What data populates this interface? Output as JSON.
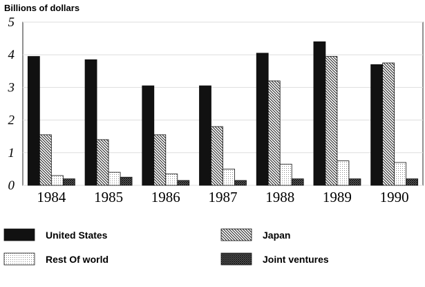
{
  "chart_data": {
    "type": "bar",
    "title": "Billions of dollars",
    "categories": [
      "1984",
      "1985",
      "1986",
      "1987",
      "1988",
      "1989",
      "1990"
    ],
    "series": [
      {
        "name": "United States",
        "color": "#111111",
        "pattern": "solid",
        "values": [
          3.95,
          3.85,
          3.05,
          3.05,
          4.05,
          4.4,
          3.7
        ]
      },
      {
        "name": "Japan",
        "color": "#444444",
        "pattern": "hatch",
        "values": [
          1.55,
          1.4,
          1.55,
          1.8,
          3.2,
          3.95,
          3.75
        ]
      },
      {
        "name": "Rest Of world",
        "color": "#999999",
        "pattern": "dots",
        "values": [
          0.3,
          0.4,
          0.35,
          0.5,
          0.65,
          0.75,
          0.7
        ]
      },
      {
        "name": "Joint ventures",
        "color": "#333333",
        "pattern": "crosshatch",
        "values": [
          0.2,
          0.25,
          0.15,
          0.15,
          0.2,
          0.2,
          0.2
        ]
      }
    ],
    "ylim": [
      0,
      5
    ],
    "yticks": [
      0,
      1,
      2,
      3,
      4,
      5
    ],
    "grid": true
  }
}
